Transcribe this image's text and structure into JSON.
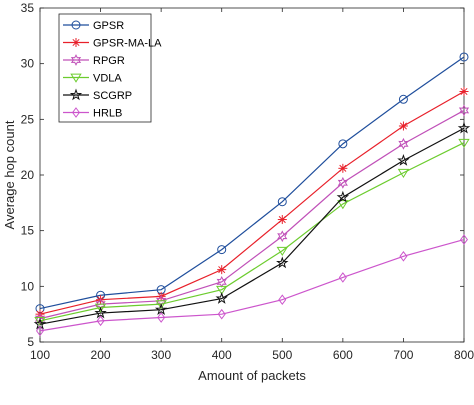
{
  "chart_data": {
    "type": "line",
    "title": "",
    "xlabel": "Amount of packets",
    "ylabel": "Average hop count",
    "xlim": [
      100,
      800
    ],
    "ylim": [
      5,
      35
    ],
    "x": [
      100,
      200,
      300,
      400,
      500,
      600,
      700,
      800
    ],
    "xticks": [
      "100",
      "200",
      "300",
      "400",
      "500",
      "600",
      "700",
      "800"
    ],
    "yticks": [
      "5",
      "10",
      "15",
      "20",
      "25",
      "30",
      "35"
    ],
    "grid": false,
    "legend_position": "top-left",
    "series": [
      {
        "name": "GPSR",
        "color": "#1f4e9c",
        "marker": "circle",
        "values": [
          8.0,
          9.2,
          9.7,
          13.3,
          17.6,
          22.8,
          26.8,
          30.6
        ]
      },
      {
        "name": "GPSR-MA-LA",
        "color": "#e8202a",
        "marker": "asterisk",
        "values": [
          7.5,
          8.8,
          9.1,
          11.5,
          16.0,
          20.6,
          24.4,
          27.5
        ]
      },
      {
        "name": "RPGR",
        "color": "#c050b8",
        "marker": "hexagram",
        "values": [
          7.1,
          8.4,
          8.7,
          10.4,
          14.5,
          19.3,
          22.8,
          25.8
        ]
      },
      {
        "name": "VDLA",
        "color": "#6ccc2e",
        "marker": "triangle-down",
        "values": [
          6.9,
          8.1,
          8.4,
          9.7,
          13.2,
          17.4,
          20.2,
          22.9
        ]
      },
      {
        "name": "SCGRP",
        "color": "#111111",
        "marker": "star",
        "values": [
          6.6,
          7.6,
          7.9,
          8.9,
          12.1,
          18.0,
          21.3,
          24.2
        ]
      },
      {
        "name": "HRLB",
        "color": "#cc55cc",
        "marker": "diamond",
        "values": [
          6.0,
          6.9,
          7.2,
          7.5,
          8.8,
          10.8,
          12.7,
          14.2
        ]
      }
    ]
  }
}
